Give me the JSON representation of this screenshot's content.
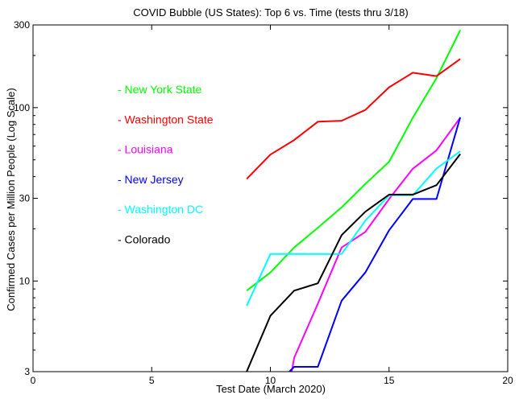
{
  "chart_data": {
    "type": "line",
    "title": "COVID Bubble (US States): Top 6 vs. Time (tests thru 3/18)",
    "xlabel": "Test Date (March 2020)",
    "ylabel": "Confirmed Cases per Million People (Log Scale)",
    "xlim": [
      0,
      20
    ],
    "ylim": [
      3,
      300
    ],
    "yscale": "log",
    "xticks": [
      0,
      5,
      10,
      15,
      20
    ],
    "yticks": [
      3,
      10,
      30,
      100,
      300
    ],
    "grid": false,
    "legend_placement": "left",
    "series": [
      {
        "name": "New York State",
        "color": "#00ff00",
        "x": [
          9,
          10,
          11,
          12,
          13,
          14,
          15,
          16,
          17,
          18
        ],
        "y": [
          8.8,
          11.2,
          15.6,
          20.3,
          26.6,
          36.3,
          48.8,
          87.4,
          148,
          280
        ]
      },
      {
        "name": "Washington State",
        "color": "#ff0000",
        "x": [
          9,
          10,
          11,
          12,
          13,
          14,
          15,
          16,
          17,
          18
        ],
        "y": [
          38.8,
          53.6,
          65,
          83,
          84,
          97,
          131,
          159,
          152,
          191
        ]
      },
      {
        "name": "Louisiana",
        "color": "#ff00ff",
        "x": [
          10.9,
          11,
          12,
          13,
          14,
          15,
          16,
          17,
          18
        ],
        "y": [
          3,
          3.6,
          7.4,
          15.6,
          19.2,
          29.7,
          44.4,
          56.7,
          87.5
        ]
      },
      {
        "name": "New Jersey",
        "color": "#0000ff",
        "x": [
          10.8,
          11,
          12,
          13,
          14,
          15,
          16,
          17,
          18
        ],
        "y": [
          3,
          3.2,
          3.2,
          7.7,
          11.2,
          19.6,
          29.7,
          29.7,
          88
        ]
      },
      {
        "name": "Washington DC",
        "color": "#00ffff",
        "x": [
          9,
          10,
          11,
          12,
          13,
          14,
          15,
          16,
          17,
          18
        ],
        "y": [
          7.2,
          14.3,
          14.3,
          14.3,
          14.3,
          22.3,
          31.2,
          31.2,
          44.5,
          56
        ]
      },
      {
        "name": "Colorado",
        "color": "#000000",
        "x": [
          9,
          10,
          11,
          12,
          13,
          14,
          15,
          16,
          17,
          18
        ],
        "y": [
          3,
          6.3,
          8.8,
          9.7,
          18.4,
          25.1,
          31.5,
          31.5,
          35.7,
          54
        ]
      }
    ]
  }
}
